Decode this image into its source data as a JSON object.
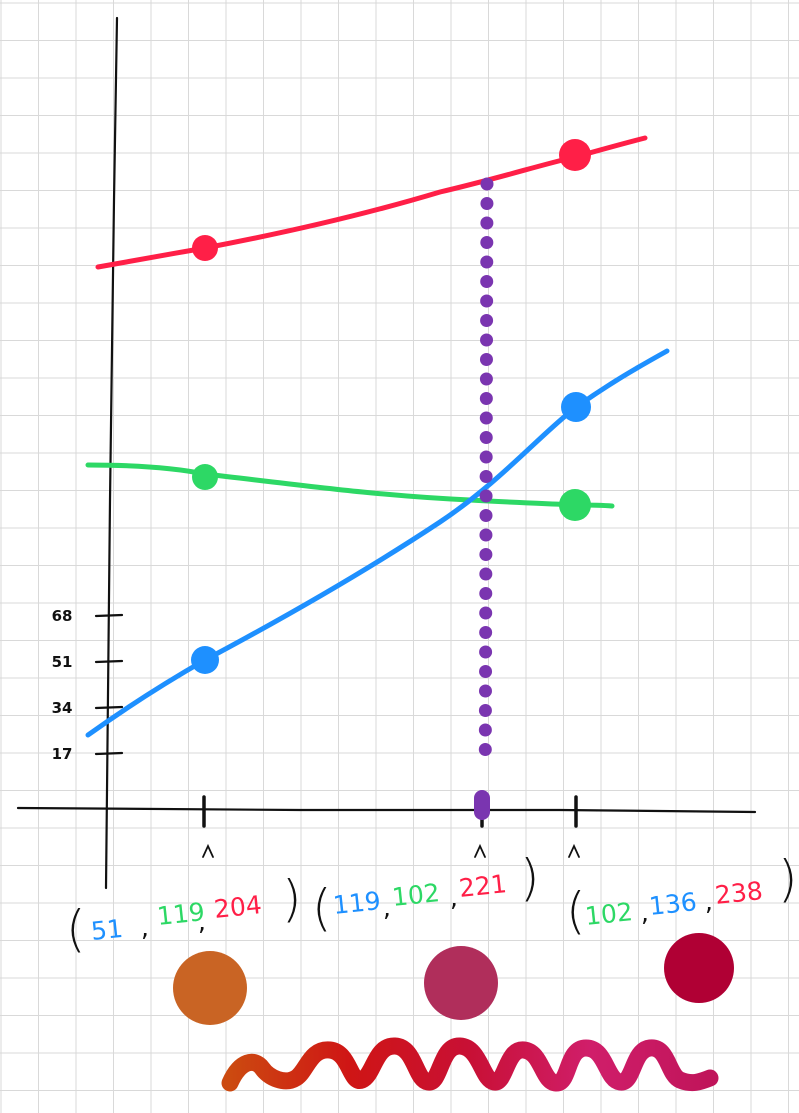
{
  "chart_data": {
    "type": "line",
    "title": "",
    "xlabel": "",
    "ylabel": "",
    "grid": true,
    "y_ticks": [
      "17",
      "34",
      "51",
      "68"
    ],
    "series": [
      {
        "color": "#ff1f47",
        "points": [
          [
            0.0,
            204
          ],
          [
            0.85,
            221
          ],
          [
            1.0,
            238
          ]
        ],
        "markers": [
          0.0,
          1.0
        ]
      },
      {
        "color": "#2dd865",
        "points": [
          [
            0.0,
            119
          ],
          [
            0.85,
            107
          ],
          [
            1.0,
            102
          ]
        ],
        "markers": [
          0.0,
          1.0
        ]
      },
      {
        "color": "#1e90ff",
        "points": [
          [
            0.0,
            51
          ],
          [
            0.85,
            119
          ],
          [
            1.0,
            136
          ]
        ],
        "markers": [
          0.0,
          1.0
        ]
      }
    ],
    "interpolation_marker": {
      "x": 0.75,
      "color": "#7a35b0"
    },
    "colors": {
      "red": "#ff1f47",
      "green": "#2dd865",
      "blue": "#1e90ff",
      "purple": "#7a35b0",
      "axis": "#111111",
      "grid": "#d9d9d9"
    },
    "triples": [
      {
        "values": [
          "51",
          "119",
          "204"
        ],
        "swatch": "#c96424"
      },
      {
        "values": [
          "119",
          "102",
          "221"
        ],
        "swatch": "#b02e5b"
      },
      {
        "values": [
          "102",
          "136",
          "238"
        ],
        "swatch": "#b00034"
      }
    ],
    "gradient_stops": [
      "#cc4a10",
      "#cf1515",
      "#c81035",
      "#d01e6a",
      "#c0145a"
    ]
  }
}
